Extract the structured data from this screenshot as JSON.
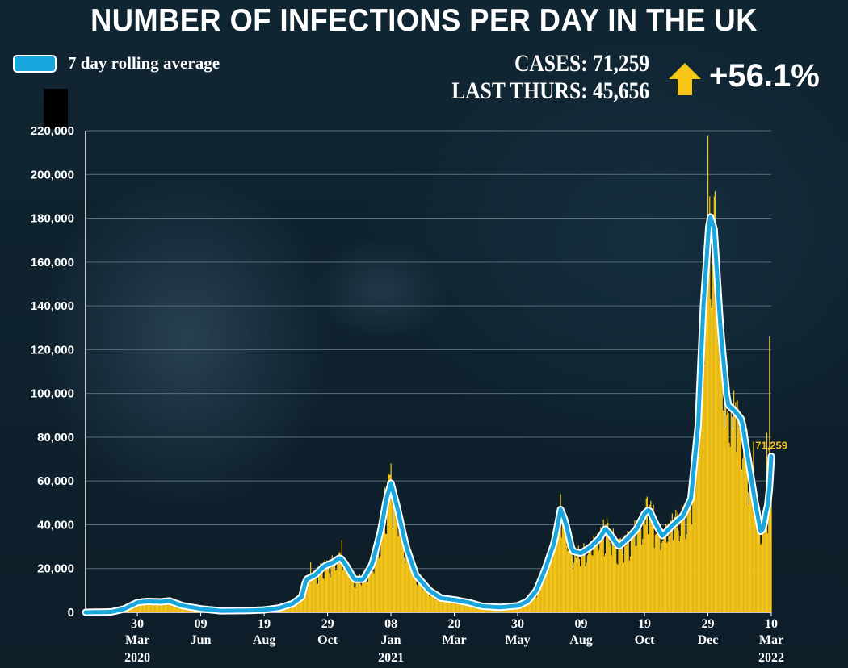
{
  "header": {
    "title": "NUMBER OF INFECTIONS PER DAY IN THE UK",
    "legend_label": "7 day rolling average",
    "cases_label": "CASES:",
    "cases_value": "71,259",
    "last_label": "LAST THURS:",
    "last_value": "45,656",
    "change": "+56.1%"
  },
  "colors": {
    "bar": "#f5c518",
    "line_outer": "#ffffff",
    "line_inner": "#18a6dc",
    "arrow": "#f5c518",
    "grid": "#5b6f7c"
  },
  "icons": {
    "change_arrow": "arrow-up-icon"
  },
  "chart_data": {
    "type": "bar",
    "title": "NUMBER OF INFECTIONS PER DAY IN THE UK",
    "ylabel": "",
    "xlabel": "",
    "ylim": [
      0,
      220000
    ],
    "yticks": [
      "0",
      "20,000",
      "40,000",
      "60,000",
      "80,000",
      "100,000",
      "120,000",
      "140,000",
      "160,000",
      "180,000",
      "200,000",
      "220,000"
    ],
    "grid": true,
    "legend": "top-left",
    "x_ticks": [
      {
        "day": "30",
        "month": "Mar",
        "year": "2020",
        "date": "2020-03-30"
      },
      {
        "day": "09",
        "month": "Jun",
        "year": "",
        "date": "2020-06-09"
      },
      {
        "day": "19",
        "month": "Aug",
        "year": "",
        "date": "2020-08-19"
      },
      {
        "day": "29",
        "month": "Oct",
        "year": "",
        "date": "2020-10-29"
      },
      {
        "day": "08",
        "month": "Jan",
        "year": "2021",
        "date": "2021-01-08"
      },
      {
        "day": "20",
        "month": "Mar",
        "year": "",
        "date": "2021-03-20"
      },
      {
        "day": "30",
        "month": "May",
        "year": "",
        "date": "2021-05-30"
      },
      {
        "day": "09",
        "month": "Aug",
        "year": "",
        "date": "2021-08-09"
      },
      {
        "day": "19",
        "month": "Oct",
        "year": "",
        "date": "2021-10-19"
      },
      {
        "day": "29",
        "month": "Dec",
        "year": "",
        "date": "2021-12-29"
      },
      {
        "day": "10",
        "month": "Mar",
        "year": "2022",
        "date": "2022-03-10"
      }
    ],
    "x_range": [
      "2020-02-01",
      "2022-03-10"
    ],
    "annotation": {
      "label": "71,259",
      "value": 71259,
      "date": "2022-03-10"
    },
    "series": [
      {
        "name": "7 day rolling average",
        "type": "line",
        "points": [
          [
            "2020-02-01",
            0
          ],
          [
            "2020-03-01",
            200
          ],
          [
            "2020-03-15",
            1500
          ],
          [
            "2020-03-30",
            4500
          ],
          [
            "2020-04-10",
            5000
          ],
          [
            "2020-04-25",
            4800
          ],
          [
            "2020-05-05",
            5200
          ],
          [
            "2020-05-20",
            3000
          ],
          [
            "2020-06-09",
            1600
          ],
          [
            "2020-07-01",
            700
          ],
          [
            "2020-08-01",
            800
          ],
          [
            "2020-08-19",
            1100
          ],
          [
            "2020-09-05",
            2000
          ],
          [
            "2020-09-20",
            4000
          ],
          [
            "2020-09-30",
            7000
          ],
          [
            "2020-10-05",
            15000
          ],
          [
            "2020-10-15",
            17000
          ],
          [
            "2020-10-25",
            21000
          ],
          [
            "2020-11-05",
            23000
          ],
          [
            "2020-11-12",
            25000
          ],
          [
            "2020-11-18",
            22000
          ],
          [
            "2020-11-28",
            15000
          ],
          [
            "2020-12-08",
            15000
          ],
          [
            "2020-12-18",
            22000
          ],
          [
            "2020-12-28",
            38000
          ],
          [
            "2021-01-03",
            52000
          ],
          [
            "2021-01-08",
            59000
          ],
          [
            "2021-01-15",
            48000
          ],
          [
            "2021-01-25",
            30000
          ],
          [
            "2021-02-05",
            17000
          ],
          [
            "2021-02-20",
            10000
          ],
          [
            "2021-03-05",
            6500
          ],
          [
            "2021-03-20",
            5700
          ],
          [
            "2021-04-05",
            4500
          ],
          [
            "2021-04-20",
            2800
          ],
          [
            "2021-05-10",
            2300
          ],
          [
            "2021-05-30",
            3000
          ],
          [
            "2021-06-10",
            5000
          ],
          [
            "2021-06-20",
            10000
          ],
          [
            "2021-06-30",
            20000
          ],
          [
            "2021-07-10",
            32000
          ],
          [
            "2021-07-17",
            47000
          ],
          [
            "2021-07-22",
            42000
          ],
          [
            "2021-07-30",
            28000
          ],
          [
            "2021-08-09",
            27000
          ],
          [
            "2021-08-20",
            30000
          ],
          [
            "2021-08-30",
            34000
          ],
          [
            "2021-09-05",
            38000
          ],
          [
            "2021-09-10",
            36000
          ],
          [
            "2021-09-20",
            30000
          ],
          [
            "2021-10-01",
            34000
          ],
          [
            "2021-10-10",
            38000
          ],
          [
            "2021-10-19",
            45000
          ],
          [
            "2021-10-24",
            47000
          ],
          [
            "2021-11-01",
            40000
          ],
          [
            "2021-11-08",
            35000
          ],
          [
            "2021-11-20",
            40000
          ],
          [
            "2021-12-01",
            44000
          ],
          [
            "2021-12-10",
            52000
          ],
          [
            "2021-12-18",
            85000
          ],
          [
            "2021-12-24",
            140000
          ],
          [
            "2021-12-31",
            182000
          ],
          [
            "2022-01-05",
            175000
          ],
          [
            "2022-01-12",
            130000
          ],
          [
            "2022-01-20",
            95000
          ],
          [
            "2022-01-28",
            92000
          ],
          [
            "2022-02-05",
            88000
          ],
          [
            "2022-02-12",
            70000
          ],
          [
            "2022-02-20",
            50000
          ],
          [
            "2022-02-26",
            37000
          ],
          [
            "2022-03-01",
            38000
          ],
          [
            "2022-03-05",
            48000
          ],
          [
            "2022-03-07",
            50000
          ],
          [
            "2022-03-10",
            71259
          ]
        ]
      },
      {
        "name": "Daily cases",
        "type": "bar",
        "spikes": [
          [
            "2020-10-10",
            23000
          ],
          [
            "2020-11-14",
            33000
          ],
          [
            "2021-01-08",
            68000
          ],
          [
            "2021-01-01",
            57000
          ],
          [
            "2021-07-17",
            54000
          ],
          [
            "2021-09-08",
            41000
          ],
          [
            "2021-10-21",
            52000
          ],
          [
            "2021-12-29",
            218000
          ],
          [
            "2021-12-31",
            190000
          ],
          [
            "2022-01-04",
            180000
          ],
          [
            "2022-01-18",
            107000
          ],
          [
            "2022-01-29",
            96000
          ],
          [
            "2022-02-18",
            78000
          ],
          [
            "2022-03-05",
            82000
          ],
          [
            "2022-03-08",
            126000
          ]
        ]
      }
    ]
  }
}
